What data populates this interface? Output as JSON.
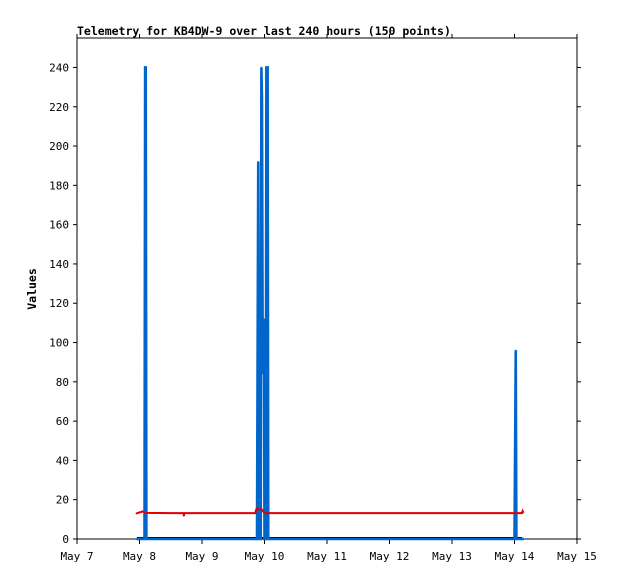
{
  "chart_data": {
    "type": "line",
    "title": "Telemetry for KB4DW-9 over last 240 hours (150 points)",
    "xlabel": "",
    "ylabel": "Values",
    "x_ticks": [
      "May 7",
      "May 8",
      "May 9",
      "May 10",
      "May 11",
      "May 12",
      "May 13",
      "May 14",
      "May 15"
    ],
    "xlim": [
      0,
      8
    ],
    "ylim": [
      0,
      255
    ],
    "y_ticks": [
      0,
      20,
      40,
      60,
      80,
      100,
      120,
      140,
      160,
      180,
      200,
      220,
      240
    ],
    "grid": false,
    "colors": {
      "series1": "#0066cc",
      "series2": "#e00000",
      "baseline": "#000000",
      "axis": "#000000"
    },
    "series": [
      {
        "color": "#0066cc",
        "style": "spikes",
        "points": [
          [
            0.95,
            0
          ],
          [
            1.08,
            0
          ],
          [
            1.09,
            240
          ],
          [
            1.1,
            240
          ],
          [
            1.11,
            0
          ],
          [
            2.88,
            0
          ],
          [
            2.9,
            192
          ],
          [
            2.91,
            64
          ],
          [
            2.915,
            0
          ],
          [
            2.94,
            0
          ],
          [
            2.95,
            240
          ],
          [
            2.96,
            224
          ],
          [
            2.97,
            104
          ],
          [
            2.98,
            84
          ],
          [
            2.99,
            112
          ],
          [
            3.0,
            0
          ],
          [
            3.02,
            0
          ],
          [
            3.03,
            240
          ],
          [
            3.05,
            240
          ],
          [
            3.06,
            0
          ],
          [
            7.0,
            0
          ],
          [
            7.01,
            48
          ],
          [
            7.02,
            96
          ],
          [
            7.03,
            0
          ],
          [
            7.15,
            0
          ]
        ]
      },
      {
        "color": "#e00000",
        "style": "line",
        "points": [
          [
            0.95,
            13
          ],
          [
            1.0,
            13.5
          ],
          [
            1.05,
            14
          ],
          [
            1.1,
            13.3
          ],
          [
            1.5,
            13.2
          ],
          [
            1.7,
            13.2
          ],
          [
            1.71,
            11.8
          ],
          [
            1.72,
            13.2
          ],
          [
            2.85,
            13.2
          ],
          [
            2.87,
            15.2
          ],
          [
            2.95,
            15.2
          ],
          [
            2.97,
            14.5
          ],
          [
            3.0,
            13.2
          ],
          [
            7.0,
            13.2
          ],
          [
            7.05,
            13.2
          ],
          [
            7.12,
            13.2
          ],
          [
            7.13,
            14.2
          ],
          [
            7.14,
            13.5
          ]
        ]
      }
    ]
  }
}
